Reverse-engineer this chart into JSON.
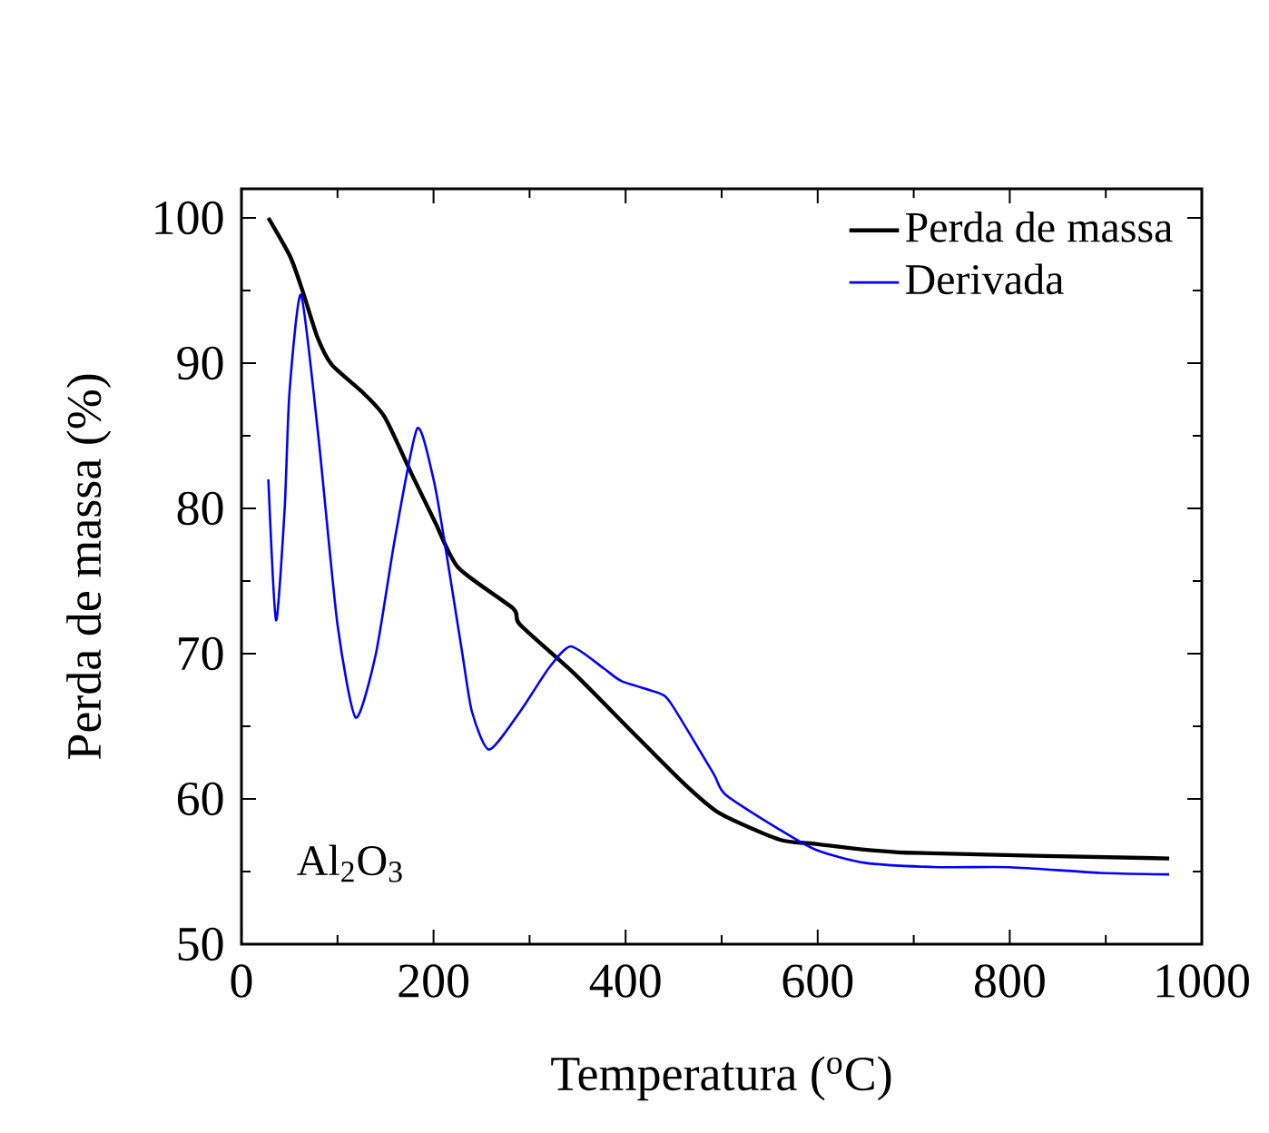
{
  "chart_data": {
    "type": "line",
    "xlabel": "Temperatura ($^{o}$C)",
    "ylabel": "Perda de massa (%)",
    "annotations": [
      "Al$_{2}$O$_{3}$"
    ],
    "xlim": [
      0,
      1000
    ],
    "ylim": [
      50,
      102
    ],
    "xticks": [
      0,
      200,
      400,
      600,
      800,
      1000
    ],
    "yticks": [
      50,
      60,
      70,
      80,
      90,
      100
    ],
    "legend": "top right",
    "grid": false,
    "marker": "none",
    "line_style": "solid",
    "series": [
      {
        "name": "Perda de massa",
        "color": "#000000",
        "x": [
          28,
          51,
          64,
          79,
          94,
          126,
          149,
          177,
          202,
          226,
          283,
          290,
          347,
          404,
          460,
          498,
          560,
          598,
          692,
          966
        ],
        "values": [
          100,
          97.3,
          94.9,
          91.8,
          89.9,
          88.0,
          86.3,
          82.4,
          79.0,
          75.9,
          73.1,
          72.0,
          68.6,
          64.8,
          61.1,
          59.0,
          57.2,
          56.9,
          56.3,
          55.9
        ]
      },
      {
        "name": "Derivada",
        "color": "#0000ff",
        "x": [
          28,
          36,
          45,
          50,
          62,
          80,
          100,
          119,
          140,
          160,
          183,
          200,
          211,
          230,
          240,
          258,
          290,
          320,
          343,
          377,
          396,
          434,
          447,
          491,
          504,
          560,
          598,
          649,
          725,
          800,
          894,
          966
        ],
        "values": [
          82.0,
          72.3,
          80,
          88,
          94.7,
          85,
          72,
          65.6,
          70,
          78,
          85.5,
          82,
          77.9,
          70,
          66,
          63.4,
          66,
          69,
          70.5,
          69.0,
          68.1,
          67.3,
          66.6,
          61.8,
          60.3,
          57.9,
          56.5,
          55.6,
          55.3,
          55.3,
          54.9,
          54.8
        ]
      }
    ]
  }
}
